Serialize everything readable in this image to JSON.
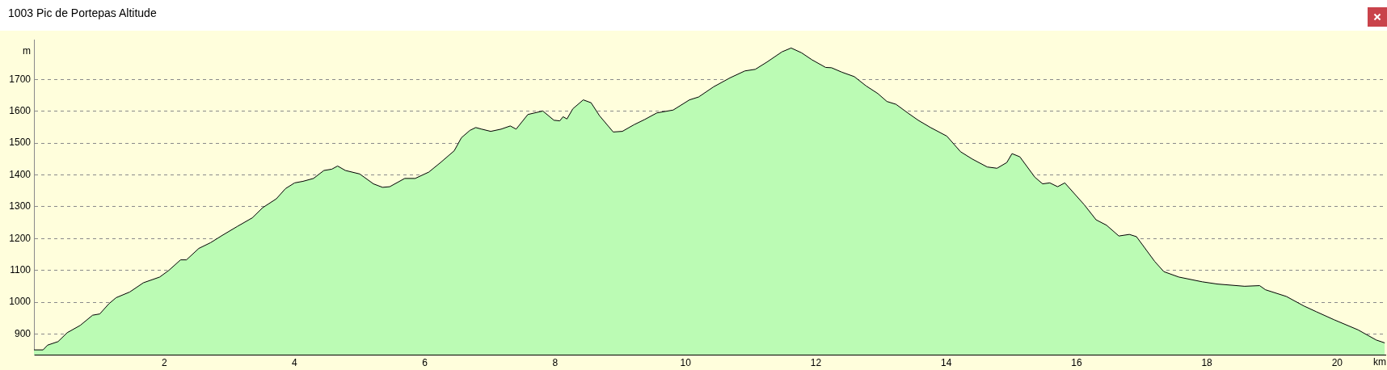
{
  "chart_data": {
    "type": "area",
    "title": "1003 Pic de Portepas Altitude",
    "xlabel": "km",
    "ylabel": "m",
    "series": [
      {
        "color": "#bbfbb4",
        "x": [
          0,
          0.14,
          0.21,
          0.37,
          0.51,
          0.71,
          0.9,
          1.01,
          1.15,
          1.26,
          1.47,
          1.68,
          1.93,
          2.07,
          2.25,
          2.34,
          2.53,
          2.71,
          2.89,
          3.12,
          3.35,
          3.51,
          3.72,
          3.86,
          4.0,
          4.13,
          4.29,
          4.45,
          4.57,
          4.66,
          4.78,
          5.0,
          5.21,
          5.35,
          5.46,
          5.69,
          5.85,
          6.06,
          6.24,
          6.45,
          6.56,
          6.69,
          6.78,
          6.87,
          7.01,
          7.17,
          7.31,
          7.4,
          7.58,
          7.81,
          7.98,
          8.07,
          8.12,
          8.18,
          8.27,
          8.43,
          8.55,
          8.68,
          8.89,
          9.03,
          9.21,
          9.37,
          9.56,
          9.81,
          10.06,
          10.2,
          10.43,
          10.68,
          10.91,
          11.07,
          11.25,
          11.48,
          11.62,
          11.78,
          11.94,
          12.15,
          12.24,
          12.4,
          12.59,
          12.77,
          12.95,
          13.09,
          13.23,
          13.41,
          13.57,
          13.76,
          14.01,
          14.22,
          14.4,
          14.63,
          14.78,
          14.93,
          15.01,
          15.13,
          15.36,
          15.48,
          15.59,
          15.71,
          15.82,
          16.12,
          16.3,
          16.46,
          16.65,
          16.81,
          16.92,
          17.2,
          17.34,
          17.57,
          17.93,
          18.16,
          18.58,
          18.81,
          18.9,
          19.22,
          19.49,
          19.68,
          19.95,
          20.32,
          20.6,
          20.73
        ],
        "values": [
          850,
          850,
          865,
          876,
          904,
          927,
          959,
          963,
          995,
          1014,
          1032,
          1061,
          1079,
          1100,
          1133,
          1133,
          1169,
          1187,
          1210,
          1238,
          1265,
          1297,
          1325,
          1357,
          1375,
          1380,
          1389,
          1414,
          1418,
          1428,
          1414,
          1403,
          1372,
          1361,
          1363,
          1389,
          1389,
          1409,
          1439,
          1476,
          1517,
          1540,
          1549,
          1544,
          1537,
          1544,
          1554,
          1544,
          1590,
          1601,
          1572,
          1570,
          1583,
          1576,
          1608,
          1636,
          1627,
          1586,
          1535,
          1537,
          1558,
          1574,
          1595,
          1604,
          1636,
          1645,
          1677,
          1705,
          1727,
          1732,
          1755,
          1787,
          1799,
          1784,
          1762,
          1738,
          1737,
          1723,
          1709,
          1680,
          1656,
          1631,
          1622,
          1595,
          1572,
          1549,
          1522,
          1473,
          1450,
          1425,
          1421,
          1439,
          1467,
          1457,
          1393,
          1372,
          1375,
          1363,
          1375,
          1306,
          1259,
          1242,
          1208,
          1213,
          1206,
          1128,
          1096,
          1079,
          1064,
          1057,
          1050,
          1052,
          1039,
          1018,
          988,
          970,
          945,
          913,
          881,
          872
        ]
      }
    ],
    "xlim": [
      0,
      20.74
    ],
    "xticks": [
      2,
      4,
      6,
      8,
      10,
      12,
      14,
      16,
      18,
      20
    ],
    "ylim": [
      835,
      1825
    ],
    "yticks": [
      900,
      1000,
      1100,
      1200,
      1300,
      1400,
      1500,
      1600,
      1700
    ],
    "grid": "y",
    "legend": false,
    "marker": "none",
    "line_style": "solid"
  }
}
